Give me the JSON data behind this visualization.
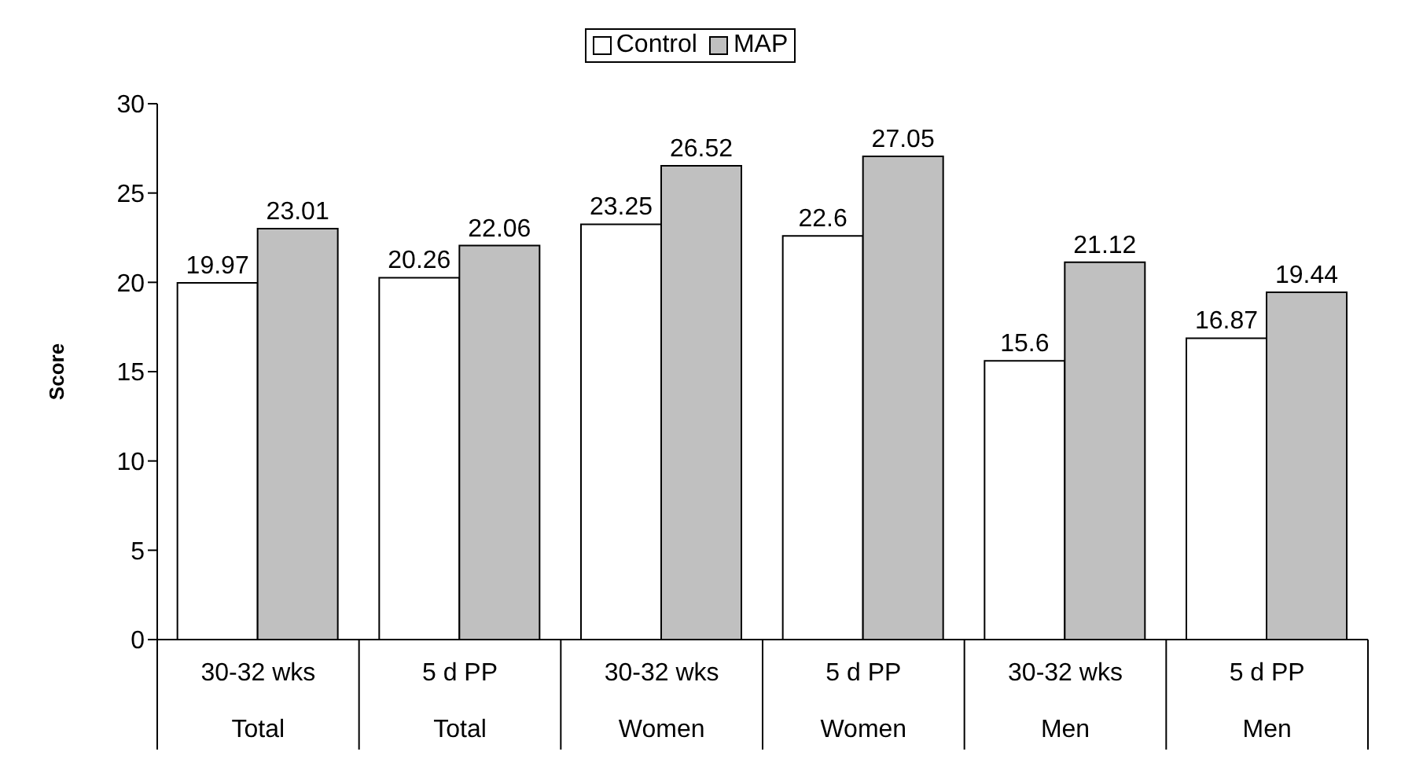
{
  "chart_data": {
    "type": "bar",
    "ylabel": "Score",
    "categories": [
      "30-32 wks\nTotal",
      "5 d PP\nTotal",
      "30-32 wks\nWomen",
      "5 d PP\nWomen",
      "30-32 wks\nMen",
      "5 d PP\nMen"
    ],
    "series": [
      {
        "name": "Control",
        "color": "#ffffff",
        "values": [
          19.97,
          20.26,
          23.25,
          22.6,
          15.6,
          16.87
        ]
      },
      {
        "name": "MAP",
        "color": "#c0c0c0",
        "values": [
          23.01,
          22.06,
          26.52,
          27.05,
          21.12,
          19.44
        ]
      }
    ],
    "ylim": [
      0,
      30
    ],
    "yticks": [
      0,
      5,
      10,
      15,
      20,
      25,
      30
    ],
    "data_labels": true,
    "legend": "top",
    "grid": false
  }
}
